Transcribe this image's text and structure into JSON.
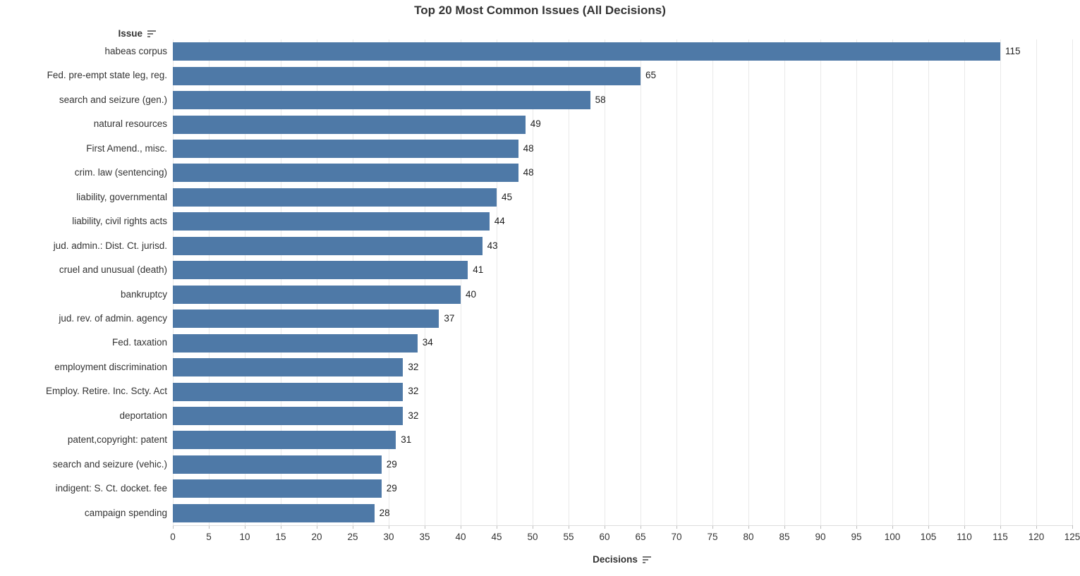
{
  "title": "Top 20 Most Common Issues (All Decisions)",
  "y_axis": {
    "header": "Issue",
    "sort_icon": "sort-descending-icon"
  },
  "x_axis": {
    "label": "Decisions",
    "sort_icon": "sort-descending-icon"
  },
  "colors": {
    "bar": "#4e79a7",
    "grid": "#e9e9e9",
    "axis_line": "#dcdcdc",
    "tick": "#bdbdbd",
    "label_text": "#333333",
    "value_text": "#1e1e1e"
  },
  "chart_data": {
    "type": "bar",
    "orientation": "horizontal",
    "title": "Top 20 Most Common Issues (All Decisions)",
    "xlabel": "Decisions",
    "ylabel": "Issue",
    "xlim": [
      0,
      125
    ],
    "x_tick_step": 5,
    "x_ticks": [
      0,
      5,
      10,
      15,
      20,
      25,
      30,
      35,
      40,
      45,
      50,
      55,
      60,
      65,
      70,
      75,
      80,
      85,
      90,
      95,
      100,
      105,
      110,
      115,
      120,
      125
    ],
    "grid": true,
    "legend": "none",
    "sort": "descending by value",
    "categories": [
      "habeas corpus",
      "Fed. pre-empt state leg, reg.",
      "search and seizure (gen.)",
      "natural resources",
      "First Amend., misc.",
      "crim. law (sentencing)",
      "liability, governmental",
      "liability, civil rights acts",
      "jud. admin.: Dist. Ct. jurisd.",
      "cruel and unusual (death)",
      "bankruptcy",
      "jud. rev. of admin. agency",
      "Fed. taxation",
      "employment discrimination",
      "Employ. Retire. Inc. Scty. Act",
      "deportation",
      "patent,copyright: patent",
      "search and seizure (vehic.)",
      "indigent: S. Ct. docket. fee",
      "campaign spending"
    ],
    "values": [
      115,
      65,
      58,
      49,
      48,
      48,
      45,
      44,
      43,
      41,
      40,
      37,
      34,
      32,
      32,
      32,
      31,
      29,
      29,
      28
    ]
  }
}
